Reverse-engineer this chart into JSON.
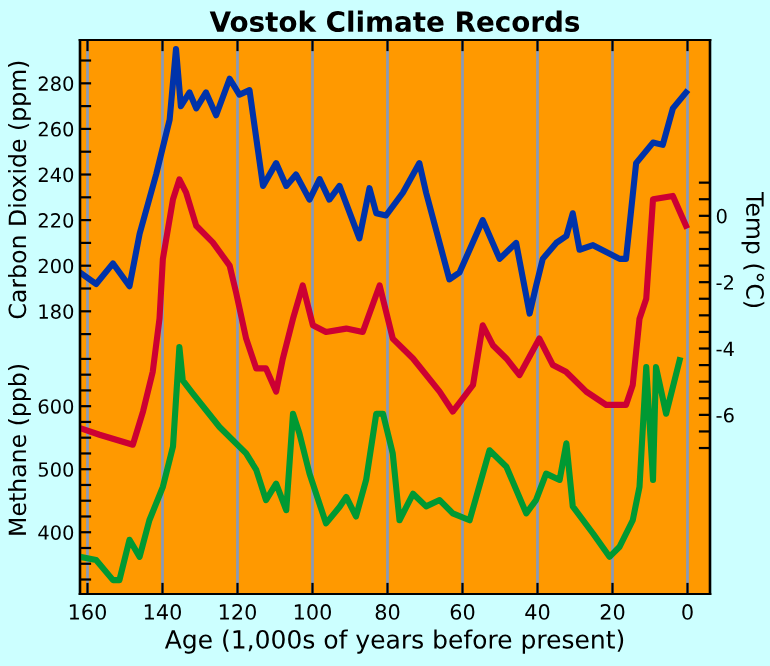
{
  "chart_data": {
    "type": "line",
    "title": "Vostok Climate Records",
    "xlabel": "Age (1,000s of years before present)",
    "ylabel": "Carbon Dioxide (ppm)",
    "y2label": "Temp (°C)",
    "y3label": "Methane (ppb)",
    "xlim": [
      162,
      -6
    ],
    "xticks": [
      160,
      140,
      120,
      100,
      80,
      60,
      40,
      20,
      0
    ],
    "ylim": [
      56,
      299
    ],
    "yticks": [
      {
        "value": 170,
        "label": null
      },
      180,
      {
        "value": 190,
        "label": null
      },
      200,
      {
        "value": 210,
        "label": null
      },
      220,
      {
        "value": 230,
        "label": null
      },
      240,
      {
        "value": 250,
        "label": null
      },
      260,
      {
        "value": 270,
        "label": null
      },
      280,
      {
        "value": 290,
        "label": null
      }
    ],
    "y2lim": [
      -11.4,
      5.3
    ],
    "y2ticks": [
      {
        "value": 1,
        "label": null
      },
      {
        "value": 0.5,
        "label": null
      },
      0,
      {
        "value": -0.5,
        "label": null
      },
      {
        "value": -1,
        "label": null
      },
      {
        "value": -1.5,
        "label": null
      },
      -2,
      {
        "value": -2.5,
        "label": null
      },
      {
        "value": -3,
        "label": null
      },
      {
        "value": -3.5,
        "label": null
      },
      -4,
      {
        "value": -4.5,
        "label": null
      },
      {
        "value": -5,
        "label": null
      },
      {
        "value": -5.5,
        "label": null
      },
      -6,
      {
        "value": -6.5,
        "label": null
      },
      {
        "value": -7,
        "label": null
      }
    ],
    "y3lim": [
      302,
      1181
    ],
    "y3ticks": [
      {
        "value": 325,
        "label": null
      },
      {
        "value": 350,
        "label": null
      },
      {
        "value": 375,
        "label": null
      },
      400,
      {
        "value": 425,
        "label": null
      },
      {
        "value": 450,
        "label": null
      },
      {
        "value": 475,
        "label": null
      },
      500,
      {
        "value": 525,
        "label": null
      },
      {
        "value": 550,
        "label": null
      },
      {
        "value": 575,
        "label": null
      },
      600,
      {
        "value": 625,
        "label": null
      },
      {
        "value": 650,
        "label": null
      },
      {
        "value": 675,
        "label": null
      }
    ],
    "grid": "x",
    "series": [
      {
        "color": "#0033aa",
        "axis": "y",
        "x": [
          162.0,
          157.7,
          153.2,
          148.8,
          146.1,
          141.7,
          138.1,
          136.4,
          135.1,
          132.8,
          131.0,
          128.4,
          125.7,
          122.1,
          119.5,
          116.8,
          113.2,
          109.7,
          107.0,
          104.4,
          100.8,
          98.1,
          95.5,
          92.8,
          87.5,
          84.8,
          83.0,
          80.4,
          75.9,
          71.5,
          69.7,
          63.5,
          60.8,
          54.6,
          50.1,
          45.7,
          42.1,
          40.4,
          38.6,
          35.0,
          32.3,
          30.6,
          28.8,
          25.2,
          18.1,
          16.4,
          13.7,
          9.2,
          6.6,
          3.9,
          0.4
        ],
        "values": [
          197,
          192,
          201,
          191,
          214,
          240,
          264,
          295,
          270,
          276,
          269,
          276,
          266,
          282,
          275,
          277,
          235,
          245,
          235,
          240,
          229,
          238,
          229,
          235,
          212,
          234,
          223,
          222,
          232,
          245,
          232,
          194,
          197,
          220,
          203,
          210,
          179,
          191,
          203,
          210,
          213,
          223,
          207,
          209,
          203,
          203,
          245,
          254,
          253,
          269,
          276
        ]
      },
      {
        "color": "#cc0033",
        "axis": "y2",
        "x": [
          162.0,
          156.8,
          147.9,
          145.2,
          142.6,
          140.8,
          139.9,
          137.2,
          135.5,
          133.7,
          131.0,
          126.6,
          122.1,
          120.4,
          117.7,
          115.0,
          112.4,
          109.7,
          107.9,
          105.2,
          102.6,
          99.9,
          96.4,
          91.0,
          86.6,
          82.1,
          78.6,
          73.2,
          66.1,
          62.6,
          57.2,
          54.6,
          51.9,
          48.3,
          44.8,
          39.5,
          35.9,
          32.4,
          27.0,
          21.7,
          16.4,
          14.6,
          12.8,
          11.0,
          9.2,
          3.9,
          0.4
        ],
        "values": [
          -6.4,
          -6.6,
          -6.9,
          -5.9,
          -4.7,
          -3.1,
          -1.3,
          0.5,
          1.1,
          0.7,
          -0.3,
          -0.8,
          -1.5,
          -2.3,
          -3.7,
          -4.6,
          -4.6,
          -5.3,
          -4.3,
          -3.1,
          -2.1,
          -3.3,
          -3.5,
          -3.4,
          -3.5,
          -2.1,
          -3.7,
          -4.3,
          -5.3,
          -5.9,
          -5.1,
          -3.3,
          -3.9,
          -4.3,
          -4.8,
          -3.7,
          -4.5,
          -4.7,
          -5.3,
          -5.7,
          -5.7,
          -5.1,
          -3.1,
          -2.5,
          0.5,
          0.6,
          -0.3
        ]
      },
      {
        "color": "#009933",
        "axis": "y3",
        "x": [
          162.0,
          157.7,
          153.2,
          151.5,
          148.8,
          146.1,
          143.5,
          139.9,
          137.2,
          135.5,
          134.6,
          131.9,
          124.8,
          117.7,
          115.0,
          112.4,
          109.7,
          107.0,
          105.2,
          103.5,
          100.8,
          96.4,
          92.8,
          91.0,
          88.4,
          85.7,
          83.0,
          81.2,
          78.6,
          76.8,
          73.2,
          69.7,
          66.1,
          62.6,
          58.1,
          52.8,
          48.3,
          43.0,
          40.4,
          37.7,
          34.1,
          32.3,
          30.6,
          25.2,
          20.8,
          18.1,
          14.6,
          12.8,
          11.0,
          9.2,
          8.4,
          5.7,
          2.1
        ],
        "values": [
          361,
          356,
          324,
          324,
          388,
          361,
          419,
          472,
          536,
          694,
          641,
          620,
          567,
          525,
          499,
          451,
          477,
          435,
          588,
          557,
          493,
          414,
          440,
          456,
          425,
          483,
          588,
          588,
          525,
          419,
          461,
          441,
          451,
          430,
          419,
          530,
          504,
          430,
          451,
          493,
          483,
          541,
          441,
          398,
          361,
          377,
          419,
          472,
          662,
          483,
          662,
          588,
          673
        ]
      }
    ]
  }
}
